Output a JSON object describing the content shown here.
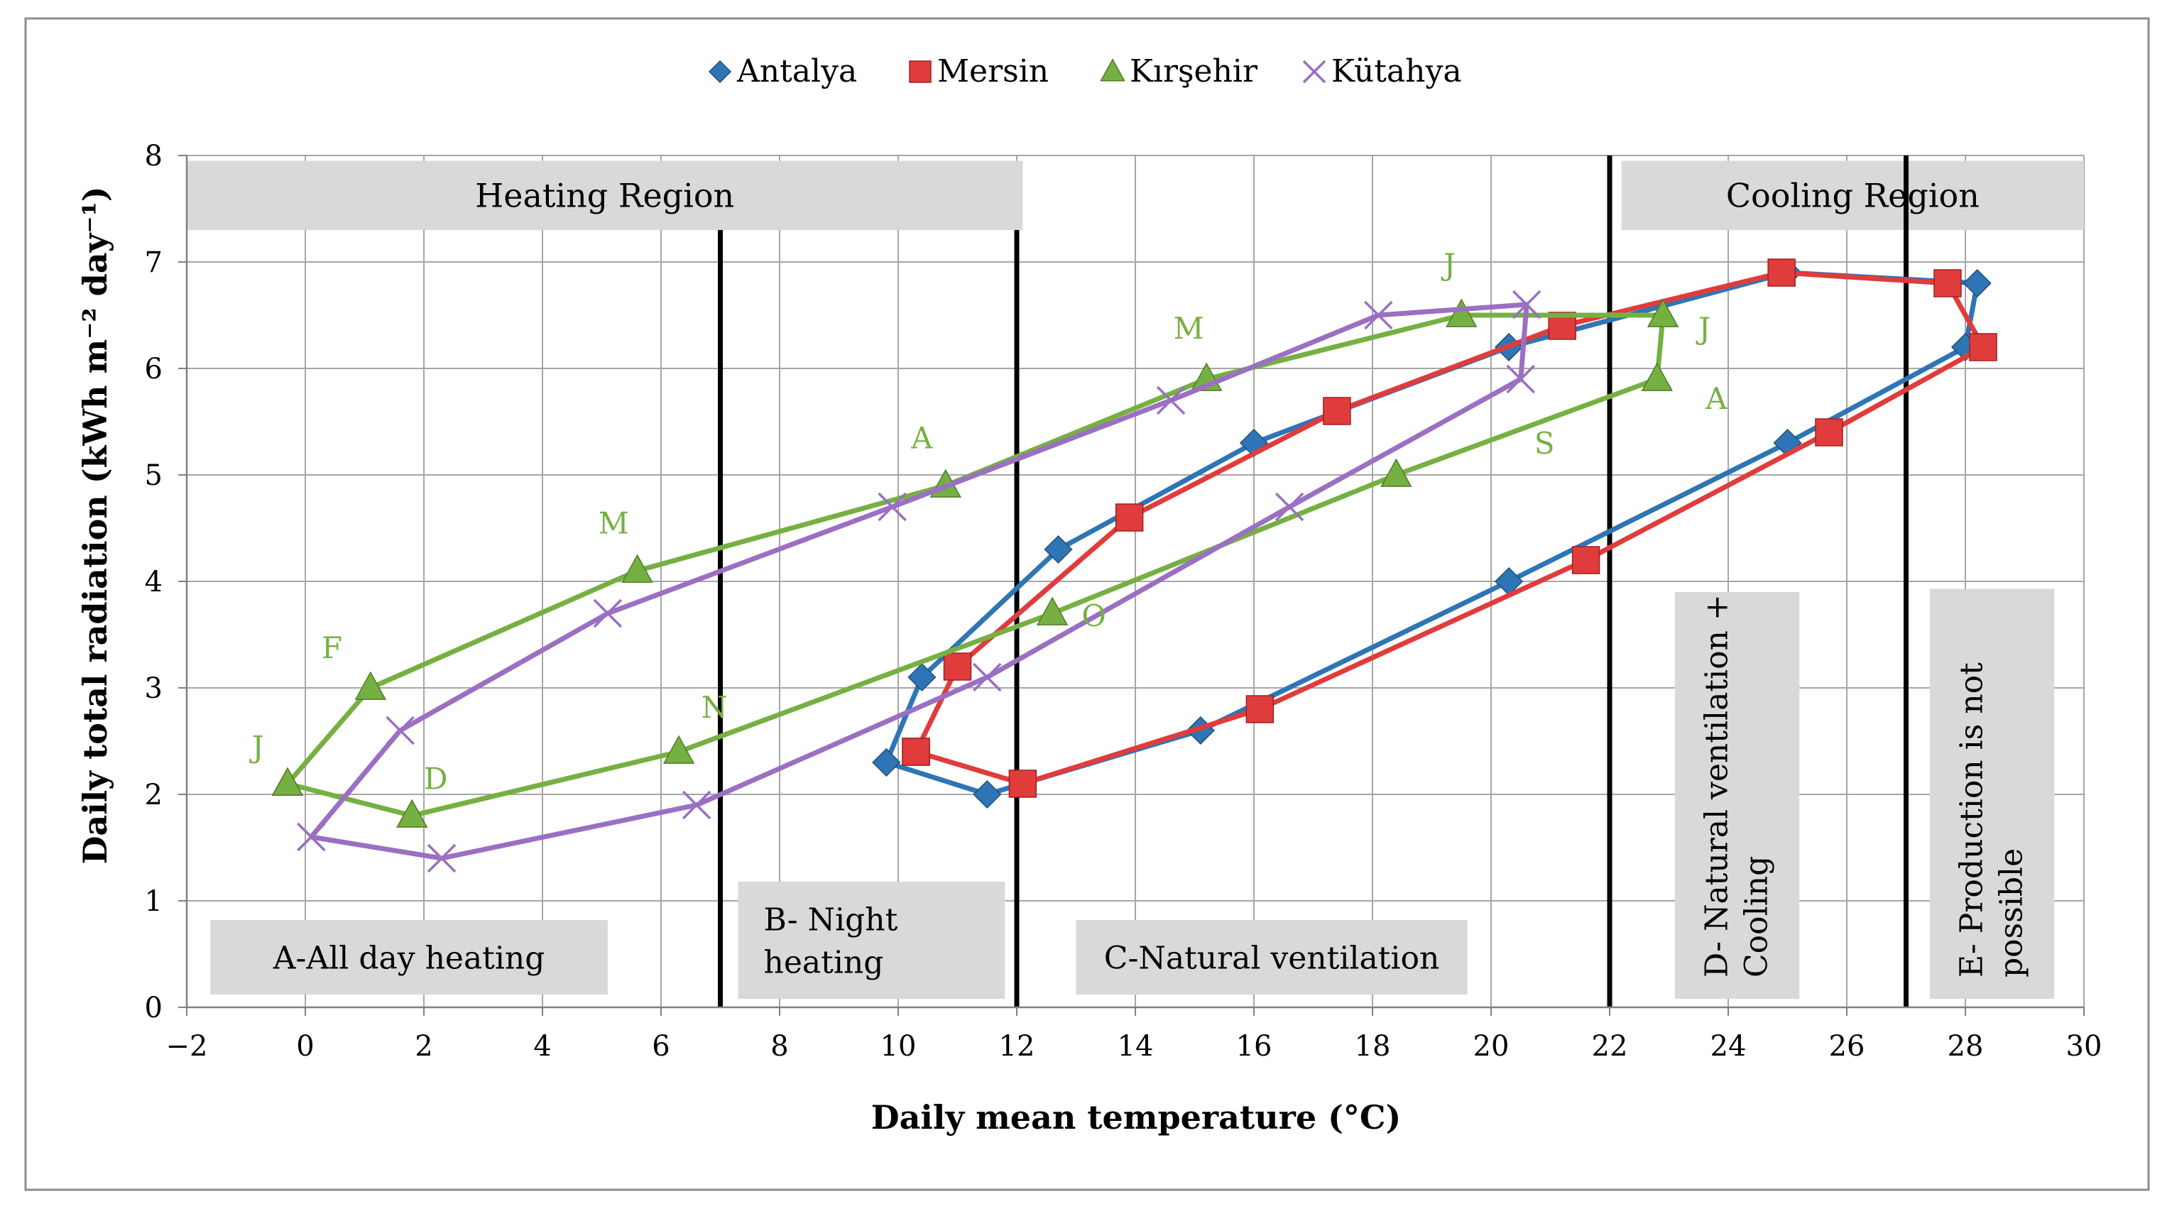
{
  "chart_data": {
    "type": "scatter",
    "xlabel": "Daily mean temperature (°C)",
    "ylabel": "Daily total radiation (kWh m⁻² day⁻¹)",
    "xlim": [
      -2,
      30
    ],
    "ylim": [
      0,
      8
    ],
    "x_ticks": [
      "−2",
      "0",
      "2",
      "4",
      "6",
      "8",
      "10",
      "12",
      "14",
      "16",
      "18",
      "20",
      "22",
      "24",
      "26",
      "28",
      "30"
    ],
    "y_ticks": [
      "0",
      "1",
      "2",
      "3",
      "4",
      "5",
      "6",
      "7",
      "8"
    ],
    "grid": true,
    "legend_position": "top-center",
    "series": [
      {
        "name": "Antalya",
        "color": "#2e75b6",
        "marker": "diamond",
        "points": [
          [
            9.8,
            2.3
          ],
          [
            10.4,
            3.1
          ],
          [
            12.7,
            4.3
          ],
          [
            16.0,
            5.3
          ],
          [
            20.3,
            6.2
          ],
          [
            25.0,
            6.9
          ],
          [
            28.2,
            6.8
          ],
          [
            28.0,
            6.2
          ],
          [
            25.0,
            5.3
          ],
          [
            20.3,
            4.0
          ],
          [
            15.1,
            2.6
          ],
          [
            11.5,
            2.0
          ],
          [
            9.8,
            2.3
          ]
        ]
      },
      {
        "name": "Mersin",
        "color": "#e03c3c",
        "marker": "square",
        "points": [
          [
            10.3,
            2.4
          ],
          [
            11.0,
            3.2
          ],
          [
            13.9,
            4.6
          ],
          [
            17.4,
            5.6
          ],
          [
            21.2,
            6.4
          ],
          [
            24.9,
            6.9
          ],
          [
            27.7,
            6.8
          ],
          [
            28.3,
            6.2
          ],
          [
            25.7,
            5.4
          ],
          [
            21.6,
            4.2
          ],
          [
            16.1,
            2.8
          ],
          [
            12.1,
            2.1
          ],
          [
            10.3,
            2.4
          ]
        ]
      },
      {
        "name": "Kırşehir",
        "color": "#76b043",
        "marker": "triangle",
        "points": [
          [
            -0.3,
            2.1
          ],
          [
            1.1,
            3.0
          ],
          [
            5.6,
            4.1
          ],
          [
            10.8,
            4.9
          ],
          [
            15.2,
            5.9
          ],
          [
            19.5,
            6.5
          ],
          [
            22.9,
            6.5
          ],
          [
            22.8,
            5.9
          ],
          [
            18.4,
            5.0
          ],
          [
            12.6,
            3.7
          ],
          [
            6.3,
            2.4
          ],
          [
            1.8,
            1.8
          ],
          [
            -0.3,
            2.1
          ]
        ]
      },
      {
        "name": "Kütahya",
        "color": "#9b6fc2",
        "marker": "cross",
        "points": [
          [
            0.1,
            1.6
          ],
          [
            1.6,
            2.6
          ],
          [
            5.1,
            3.7
          ],
          [
            9.9,
            4.7
          ],
          [
            14.6,
            5.7
          ],
          [
            18.1,
            6.5
          ],
          [
            20.6,
            6.6
          ],
          [
            20.5,
            5.9
          ],
          [
            16.6,
            4.7
          ],
          [
            11.5,
            3.1
          ],
          [
            6.6,
            1.9
          ],
          [
            2.3,
            1.4
          ],
          [
            0.1,
            1.6
          ]
        ]
      }
    ],
    "month_labels": [
      {
        "text": "J",
        "x": -0.8,
        "y": 2.35
      },
      {
        "text": "F",
        "x": 0.45,
        "y": 3.28
      },
      {
        "text": "M",
        "x": 5.2,
        "y": 4.45
      },
      {
        "text": "A",
        "x": 10.4,
        "y": 5.25
      },
      {
        "text": "M",
        "x": 14.9,
        "y": 6.28
      },
      {
        "text": "J",
        "x": 19.3,
        "y": 6.88
      },
      {
        "text": "J",
        "x": 23.6,
        "y": 6.28
      },
      {
        "text": "A",
        "x": 23.8,
        "y": 5.62
      },
      {
        "text": "S",
        "x": 20.9,
        "y": 5.2
      },
      {
        "text": "O",
        "x": 13.3,
        "y": 3.58
      },
      {
        "text": "N",
        "x": 6.9,
        "y": 2.72
      },
      {
        "text": "D",
        "x": 2.2,
        "y": 2.05
      }
    ],
    "month_label_color": "#76b043",
    "region_boundaries_x": [
      7,
      12,
      22,
      27
    ],
    "region_headers": [
      {
        "text": "Heating Region",
        "x_from": -2,
        "x_to": 12.1,
        "y_from": 7.3,
        "y_to": 7.95
      },
      {
        "text": "Cooling Region",
        "x_from": 22.2,
        "x_to": 30,
        "y_from": 7.3,
        "y_to": 7.95
      }
    ],
    "zone_boxes": [
      {
        "text": "A-All day heating",
        "x_from": -1.6,
        "x_to": 5.1,
        "y_from": 0.12,
        "y_to": 0.82,
        "orientation": "horizontal"
      },
      {
        "text_lines": [
          "B- Night",
          "heating"
        ],
        "x_from": 7.3,
        "x_to": 11.8,
        "y_from": 0.08,
        "y_to": 1.18,
        "orientation": "horizontal"
      },
      {
        "text": "C-Natural ventilation",
        "x_from": 13.0,
        "x_to": 19.6,
        "y_from": 0.12,
        "y_to": 0.82,
        "orientation": "horizontal"
      },
      {
        "text_lines": [
          "D- Natural ventilation +",
          "Cooling"
        ],
        "x_from": 23.1,
        "x_to": 25.2,
        "y_from": 0.08,
        "y_to": 3.9,
        "orientation": "vertical"
      },
      {
        "text_lines": [
          "E- Production is not",
          "possible"
        ],
        "x_from": 27.4,
        "x_to": 29.5,
        "y_from": 0.08,
        "y_to": 3.93,
        "orientation": "vertical"
      }
    ]
  }
}
